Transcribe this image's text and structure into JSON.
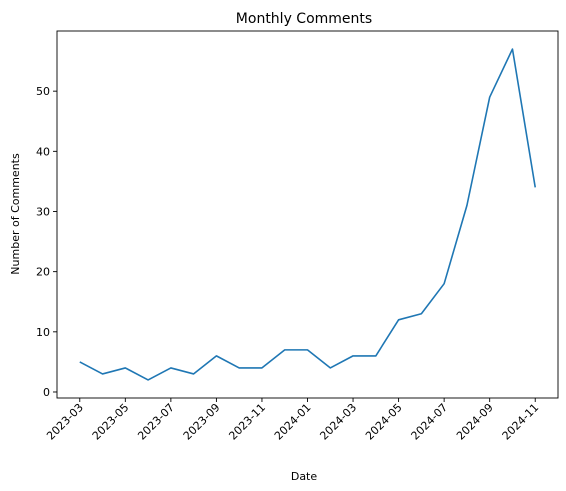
{
  "chart_data": {
    "type": "line",
    "title": "Monthly Comments",
    "xlabel": "Date",
    "ylabel": "Number of Comments",
    "x_ticks": [
      "2023-03",
      "2023-05",
      "2023-07",
      "2023-09",
      "2023-11",
      "2024-01",
      "2024-03",
      "2024-05",
      "2024-07",
      "2024-09",
      "2024-11"
    ],
    "y_ticks": [
      0,
      10,
      20,
      30,
      40,
      50
    ],
    "ylim": [
      -1,
      60
    ],
    "grid": false,
    "line_color": "#1f77b4",
    "x": [
      "2023-03",
      "2023-04",
      "2023-05",
      "2023-06",
      "2023-07",
      "2023-08",
      "2023-09",
      "2023-10",
      "2023-11",
      "2023-12",
      "2024-01",
      "2024-02",
      "2024-03",
      "2024-04",
      "2024-05",
      "2024-06",
      "2024-07",
      "2024-08",
      "2024-09",
      "2024-10",
      "2024-11"
    ],
    "values": [
      5,
      3,
      4,
      2,
      4,
      3,
      6,
      4,
      4,
      7,
      7,
      4,
      6,
      6,
      12,
      13,
      18,
      31,
      49,
      57,
      34
    ]
  }
}
